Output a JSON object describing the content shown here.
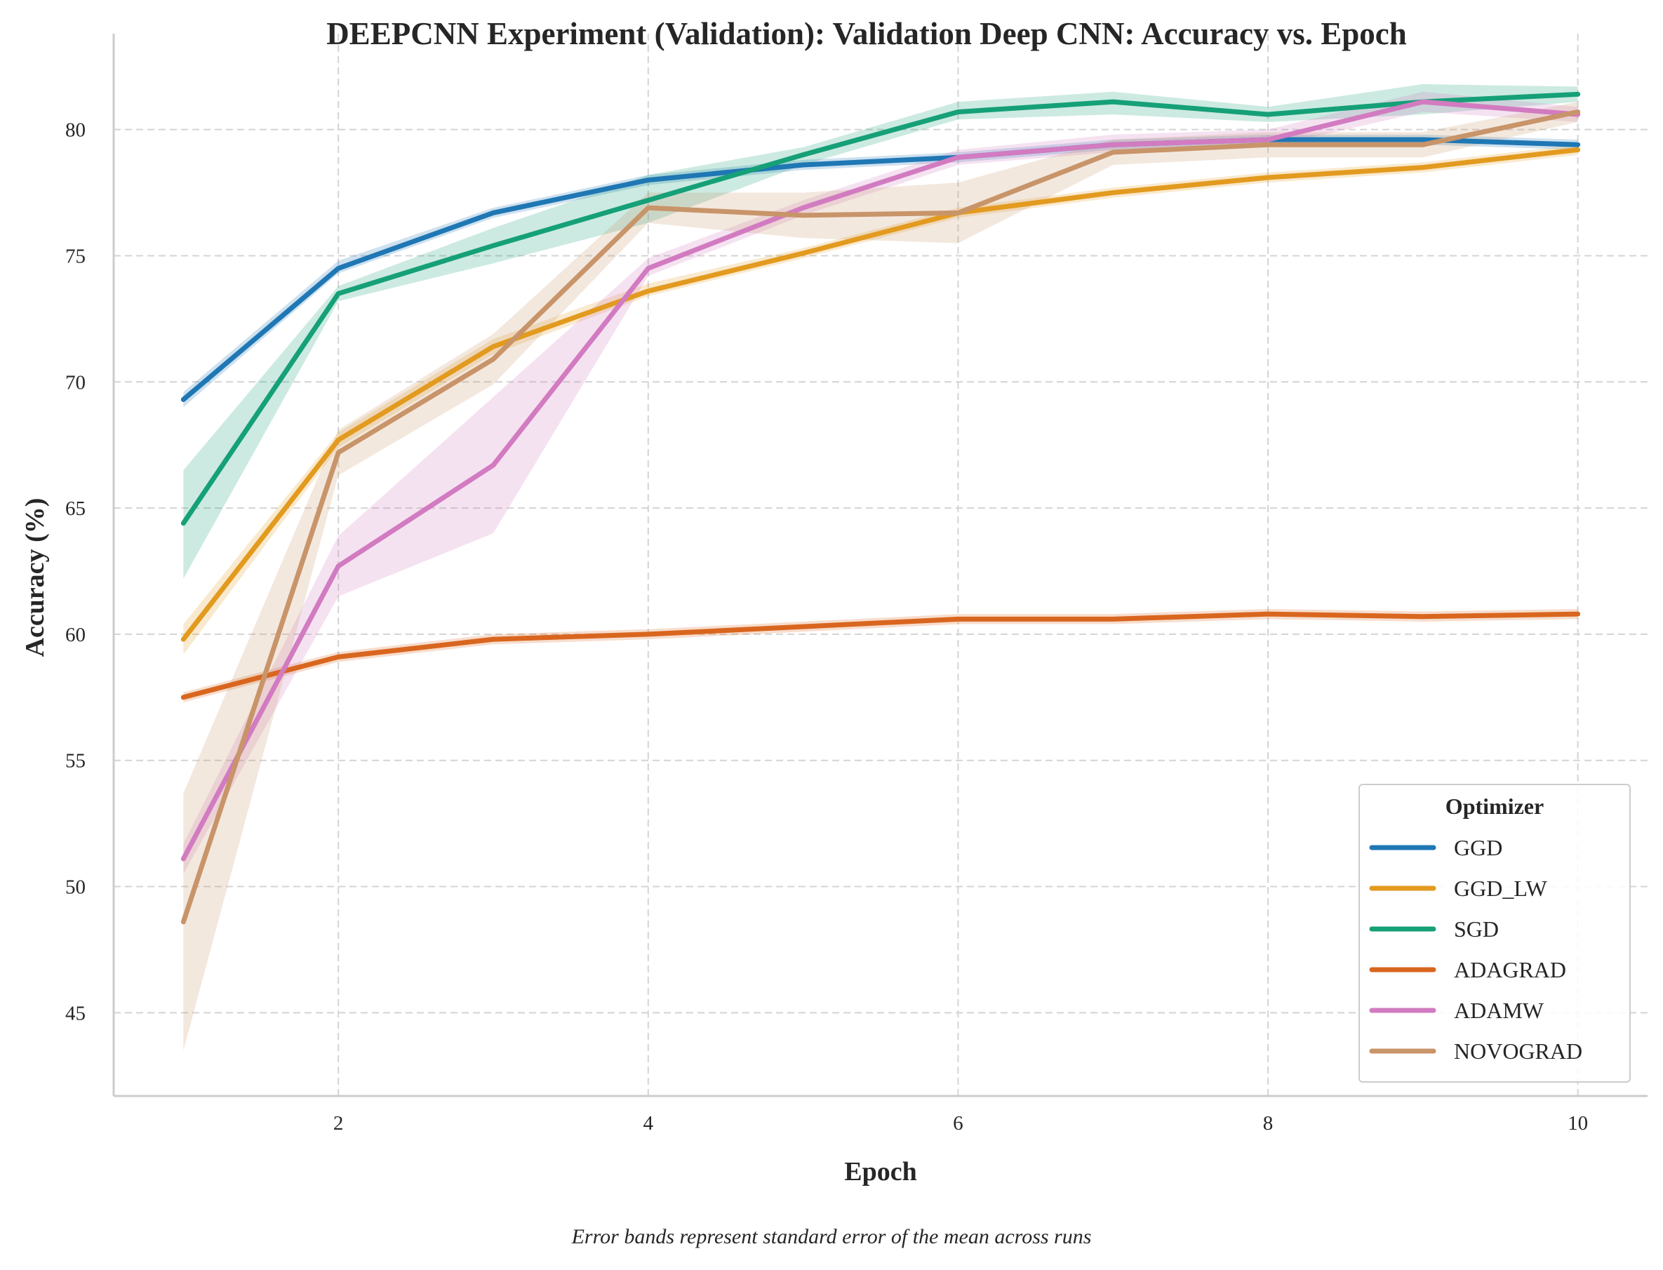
{
  "chart_data": {
    "type": "line",
    "title": "DEEPCNN Experiment (Validation): Validation Deep CNN: Accuracy vs. Epoch",
    "xlabel": "Epoch",
    "ylabel": "Accuracy (%)",
    "caption": "Error bands represent standard error of the mean across runs",
    "xlim": [
      0.55,
      10.45
    ],
    "ylim": [
      41.7,
      83.8
    ],
    "xticks": [
      "2",
      "4",
      "6",
      "8",
      "10"
    ],
    "yticks": [
      "45",
      "50",
      "55",
      "60",
      "65",
      "70",
      "75",
      "80"
    ],
    "grid": true,
    "legend": {
      "title": "Optimizer",
      "placement": "lower-right"
    },
    "x": [
      1,
      2,
      3,
      4,
      5,
      6,
      7,
      8,
      9,
      10
    ],
    "series": [
      {
        "name": "GGD",
        "color": "#1f77b4",
        "values": [
          69.3,
          74.5,
          76.7,
          78.0,
          78.6,
          78.9,
          79.4,
          79.6,
          79.6,
          79.4
        ],
        "lower": [
          69.0,
          74.3,
          76.5,
          77.8,
          78.4,
          78.7,
          79.2,
          79.4,
          79.4,
          79.2
        ],
        "upper": [
          69.6,
          74.8,
          76.9,
          78.2,
          78.8,
          79.1,
          79.6,
          79.8,
          79.8,
          79.6
        ]
      },
      {
        "name": "GGD_LW",
        "color": "#e29a1f",
        "values": [
          59.8,
          67.7,
          71.4,
          73.6,
          75.1,
          76.7,
          77.5,
          78.1,
          78.5,
          79.2
        ],
        "lower": [
          59.2,
          67.4,
          71.1,
          73.4,
          74.9,
          76.5,
          77.3,
          77.9,
          78.3,
          79.0
        ],
        "upper": [
          60.4,
          68.0,
          71.7,
          73.9,
          75.3,
          76.9,
          77.7,
          78.3,
          78.7,
          79.4
        ]
      },
      {
        "name": "SGD",
        "color": "#16a077",
        "values": [
          64.4,
          73.5,
          75.4,
          77.2,
          79.0,
          80.7,
          81.1,
          80.6,
          81.1,
          81.4
        ],
        "lower": [
          62.2,
          73.2,
          74.7,
          76.3,
          78.6,
          80.4,
          80.6,
          80.3,
          80.6,
          81.1
        ],
        "upper": [
          66.5,
          73.8,
          76.1,
          78.2,
          79.3,
          81.1,
          81.5,
          80.9,
          81.8,
          81.7
        ]
      },
      {
        "name": "ADAGRAD",
        "color": "#d9661f",
        "values": [
          57.5,
          59.1,
          59.8,
          60.0,
          60.3,
          60.6,
          60.6,
          60.8,
          60.7,
          60.8
        ],
        "lower": [
          57.3,
          58.9,
          59.6,
          59.8,
          60.1,
          60.4,
          60.4,
          60.6,
          60.5,
          60.6
        ],
        "upper": [
          57.7,
          59.3,
          60.0,
          60.2,
          60.5,
          60.8,
          60.8,
          61.0,
          60.9,
          61.0
        ]
      },
      {
        "name": "ADAMW",
        "color": "#d27bc1",
        "values": [
          51.1,
          62.7,
          66.7,
          74.5,
          76.9,
          78.9,
          79.4,
          79.6,
          81.1,
          80.6
        ],
        "lower": [
          50.5,
          61.5,
          64.0,
          74.2,
          76.6,
          78.6,
          79.1,
          79.3,
          80.7,
          80.3
        ],
        "upper": [
          51.7,
          63.9,
          69.4,
          74.9,
          77.2,
          79.2,
          79.8,
          80.0,
          81.5,
          80.9
        ]
      },
      {
        "name": "NOVOGRAD",
        "color": "#c89469",
        "values": [
          48.6,
          67.2,
          70.9,
          76.9,
          76.6,
          76.7,
          79.1,
          79.4,
          79.4,
          80.7
        ],
        "lower": [
          43.5,
          66.3,
          69.9,
          76.3,
          75.7,
          75.5,
          78.6,
          78.9,
          78.9,
          80.3
        ],
        "upper": [
          53.7,
          68.1,
          71.9,
          77.5,
          77.5,
          77.9,
          79.6,
          79.9,
          79.9,
          81.1
        ]
      }
    ]
  }
}
